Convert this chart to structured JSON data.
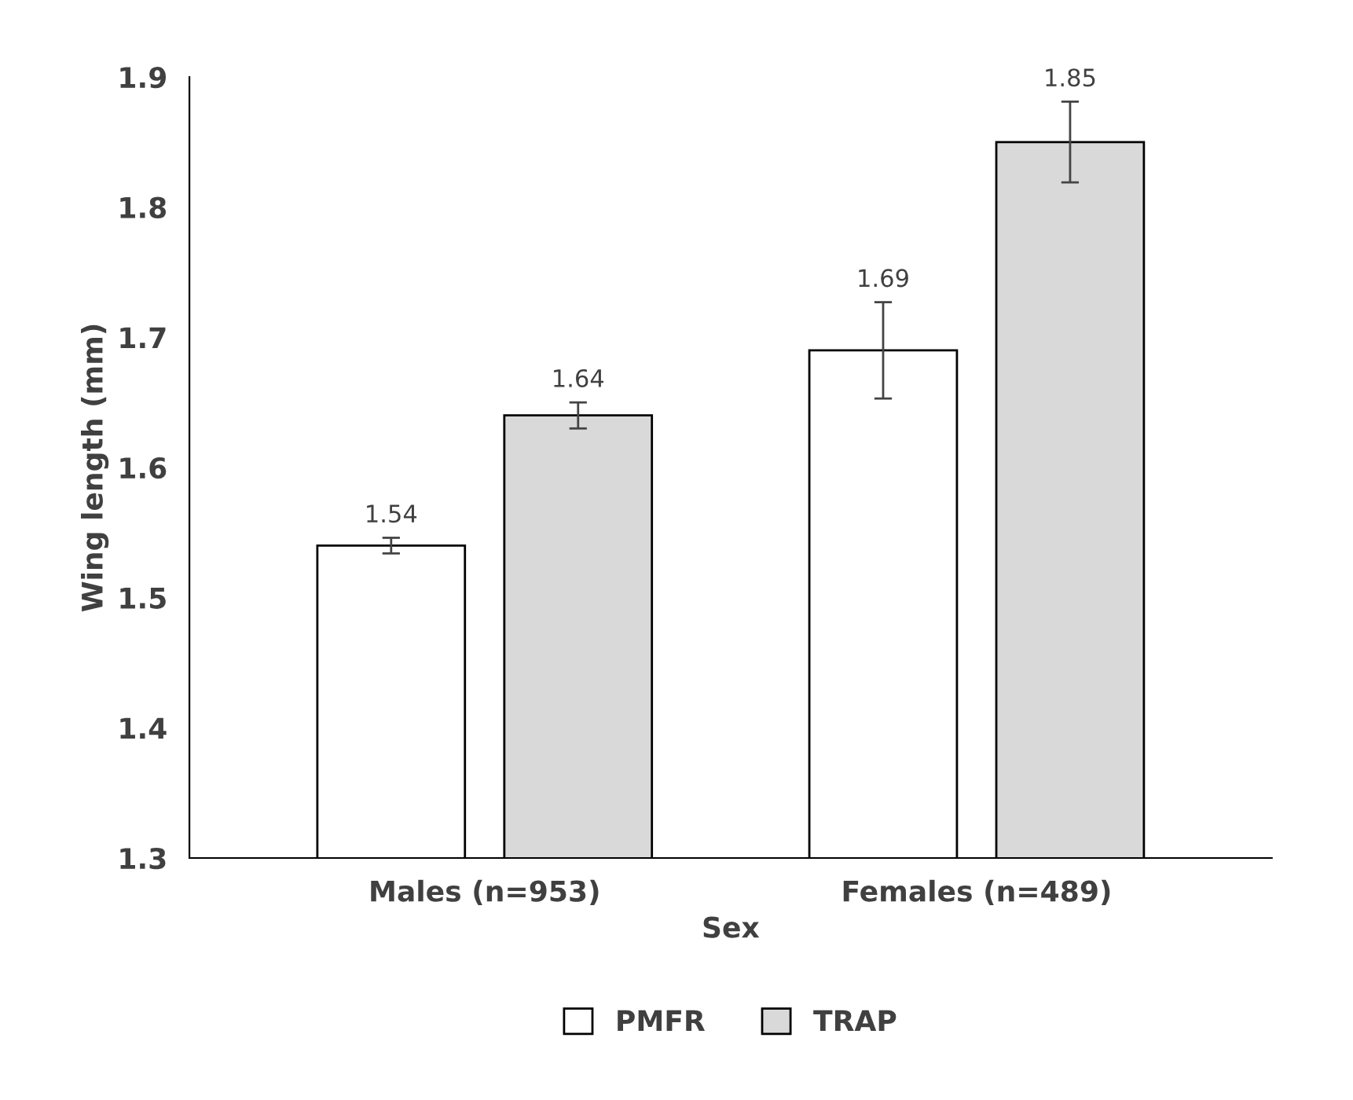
{
  "chart_data": {
    "type": "bar",
    "xlabel": "Sex",
    "ylabel": "Wing length (mm)",
    "categories": [
      "Males (n=953)",
      "Females (n=489)"
    ],
    "series": [
      {
        "name": "PMFR",
        "color": "#ffffff",
        "values": [
          1.54,
          1.69
        ],
        "errors": [
          0.006,
          0.037
        ],
        "value_labels": [
          "1.54",
          "1.69"
        ]
      },
      {
        "name": "TRAP",
        "color": "#d9d9d9",
        "values": [
          1.64,
          1.85
        ],
        "errors": [
          0.01,
          0.031
        ],
        "value_labels": [
          "1.64",
          "1.85"
        ]
      }
    ],
    "ylim": [
      1.3,
      1.9
    ],
    "yticks": [
      1.3,
      1.4,
      1.5,
      1.6,
      1.7,
      1.8,
      1.9
    ],
    "grid": false,
    "legend": "bottom"
  }
}
